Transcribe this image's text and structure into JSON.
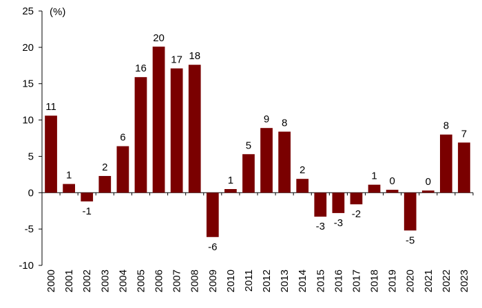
{
  "chart_data": {
    "type": "bar",
    "unit_label": "(%)",
    "title": "",
    "xlabel": "",
    "ylabel": "",
    "ylim": [
      -10,
      25
    ],
    "yticks": [
      -10,
      -5,
      0,
      5,
      10,
      15,
      20,
      25
    ],
    "grid": false,
    "legend": "none",
    "bar_color": "#7a0000",
    "categories": [
      "2000",
      "2001",
      "2002",
      "2003",
      "2004",
      "2005",
      "2006",
      "2007",
      "2008",
      "2009",
      "2010",
      "2011",
      "2012",
      "2013",
      "2014",
      "2015",
      "2016",
      "2017",
      "2018",
      "2019",
      "2020",
      "2021",
      "2022",
      "2023"
    ],
    "values": [
      10.6,
      1.2,
      -1.2,
      2.3,
      6.4,
      15.9,
      20.1,
      17.1,
      17.6,
      -6.1,
      0.5,
      5.3,
      8.9,
      8.4,
      1.9,
      -3.3,
      -2.8,
      -1.6,
      1.1,
      0.4,
      -5.2,
      0.3,
      8.0,
      6.9
    ],
    "data_labels": [
      "11",
      "1",
      "-1",
      "2",
      "6",
      "16",
      "20",
      "17",
      "18",
      "-6",
      "1",
      "5",
      "9",
      "8",
      "2",
      "-3",
      "-3",
      "-2",
      "1",
      "0",
      "-5",
      "0",
      "8",
      "7"
    ]
  }
}
